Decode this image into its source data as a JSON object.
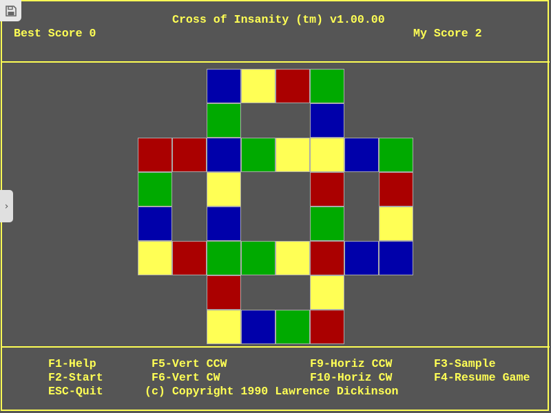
{
  "header": {
    "title": "Cross of Insanity (tm) v1.00.00",
    "best_score": "Best Score 0",
    "my_score": "My Score 2"
  },
  "colors": {
    "R": "#aa0000",
    "G": "#00aa00",
    "B": "#0000aa",
    "Y": "#ffff55",
    "text": "#ffff55",
    "background": "#555555"
  },
  "board": [
    "..BYRG..",
    "..G..B..",
    "RRBGYYBG",
    "G.Y..R.R",
    "B.B..G.Y",
    "YRGGYRBB",
    "..R..Y..",
    "..YBGR.."
  ],
  "footer": {
    "f1": "F1-Help",
    "f2": "F2-Start",
    "esc": "ESC-Quit",
    "f5": "F5-Vert CCW",
    "f6": "F6-Vert CW",
    "f9": "F9-Horiz CCW",
    "f10": "F10-Horiz CW",
    "f3": "F3-Sample",
    "f4": "F4-Resume Game",
    "copyright": "(c) Copyright 1990 Lawrence Dickinson"
  },
  "overlay": {
    "save_icon": "floppy-disk-icon",
    "expand_icon": "chevron-right-icon"
  }
}
